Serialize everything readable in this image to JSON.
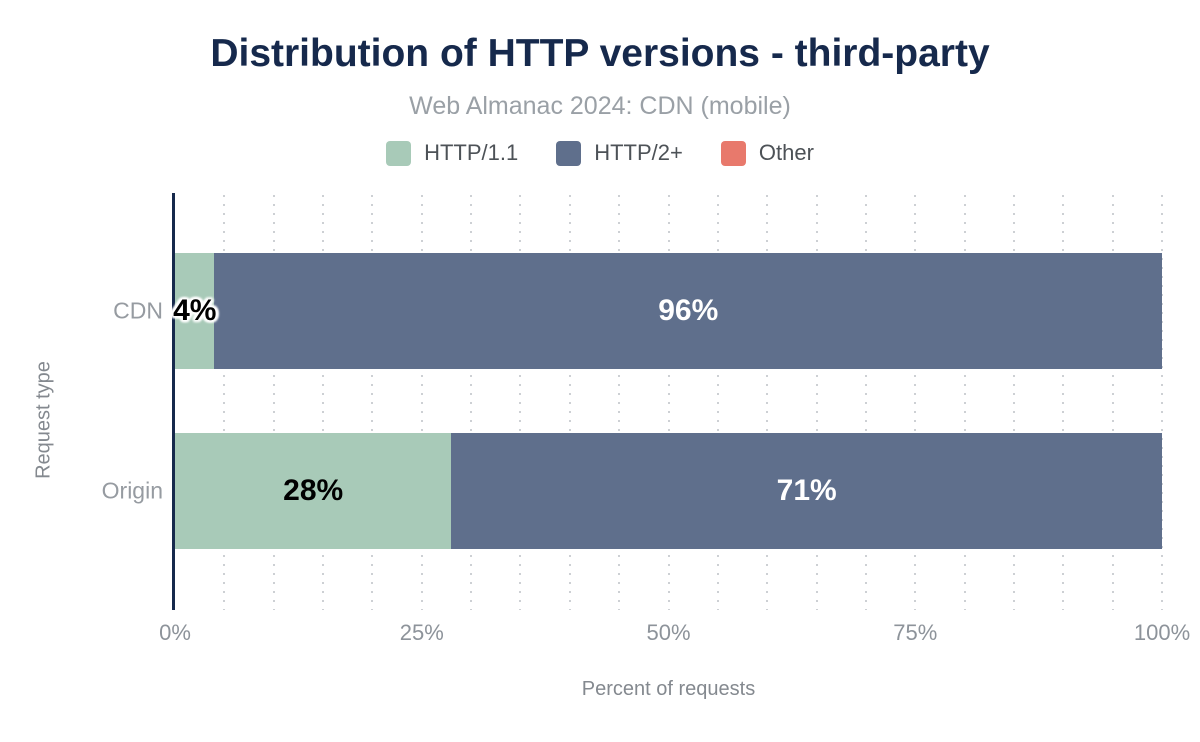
{
  "title": "Distribution of HTTP versions - third-party",
  "subtitle": "Web Almanac 2024: CDN (mobile)",
  "chart_data": {
    "type": "bar",
    "orientation": "horizontal",
    "stacked": true,
    "title": "Distribution of HTTP versions - third-party",
    "subtitle": "Web Almanac 2024: CDN (mobile)",
    "categories": [
      "CDN",
      "Origin"
    ],
    "series": [
      {
        "name": "HTTP/1.1",
        "color": "#a8cab8",
        "label_color": "#000000",
        "values": [
          4,
          28
        ]
      },
      {
        "name": "HTTP/2+",
        "color": "#5f6f8c",
        "label_color": "#ffffff",
        "values": [
          96,
          71
        ]
      },
      {
        "name": "Other",
        "color": "#e8796c",
        "label_color": "#000000",
        "values": [
          0,
          0
        ]
      }
    ],
    "data_labels": {
      "CDN": [
        "4%",
        "96%"
      ],
      "Origin": [
        "28%",
        "71%"
      ]
    },
    "xlabel": "Percent of requests",
    "ylabel": "Request type",
    "x_ticks": [
      "0%",
      "25%",
      "50%",
      "75%",
      "100%"
    ],
    "x_tick_values": [
      0,
      25,
      50,
      75,
      100
    ],
    "xlim": [
      0,
      100
    ],
    "grid": true,
    "grid_step_percent": 5,
    "legend_position": "top",
    "colors": {
      "title": "#16294c",
      "axis_line": "#16294c",
      "gridline": "#cdd0d4",
      "tick_label": "#8d939a",
      "category_label": "#969ba1",
      "axis_title": "#84898f"
    }
  }
}
